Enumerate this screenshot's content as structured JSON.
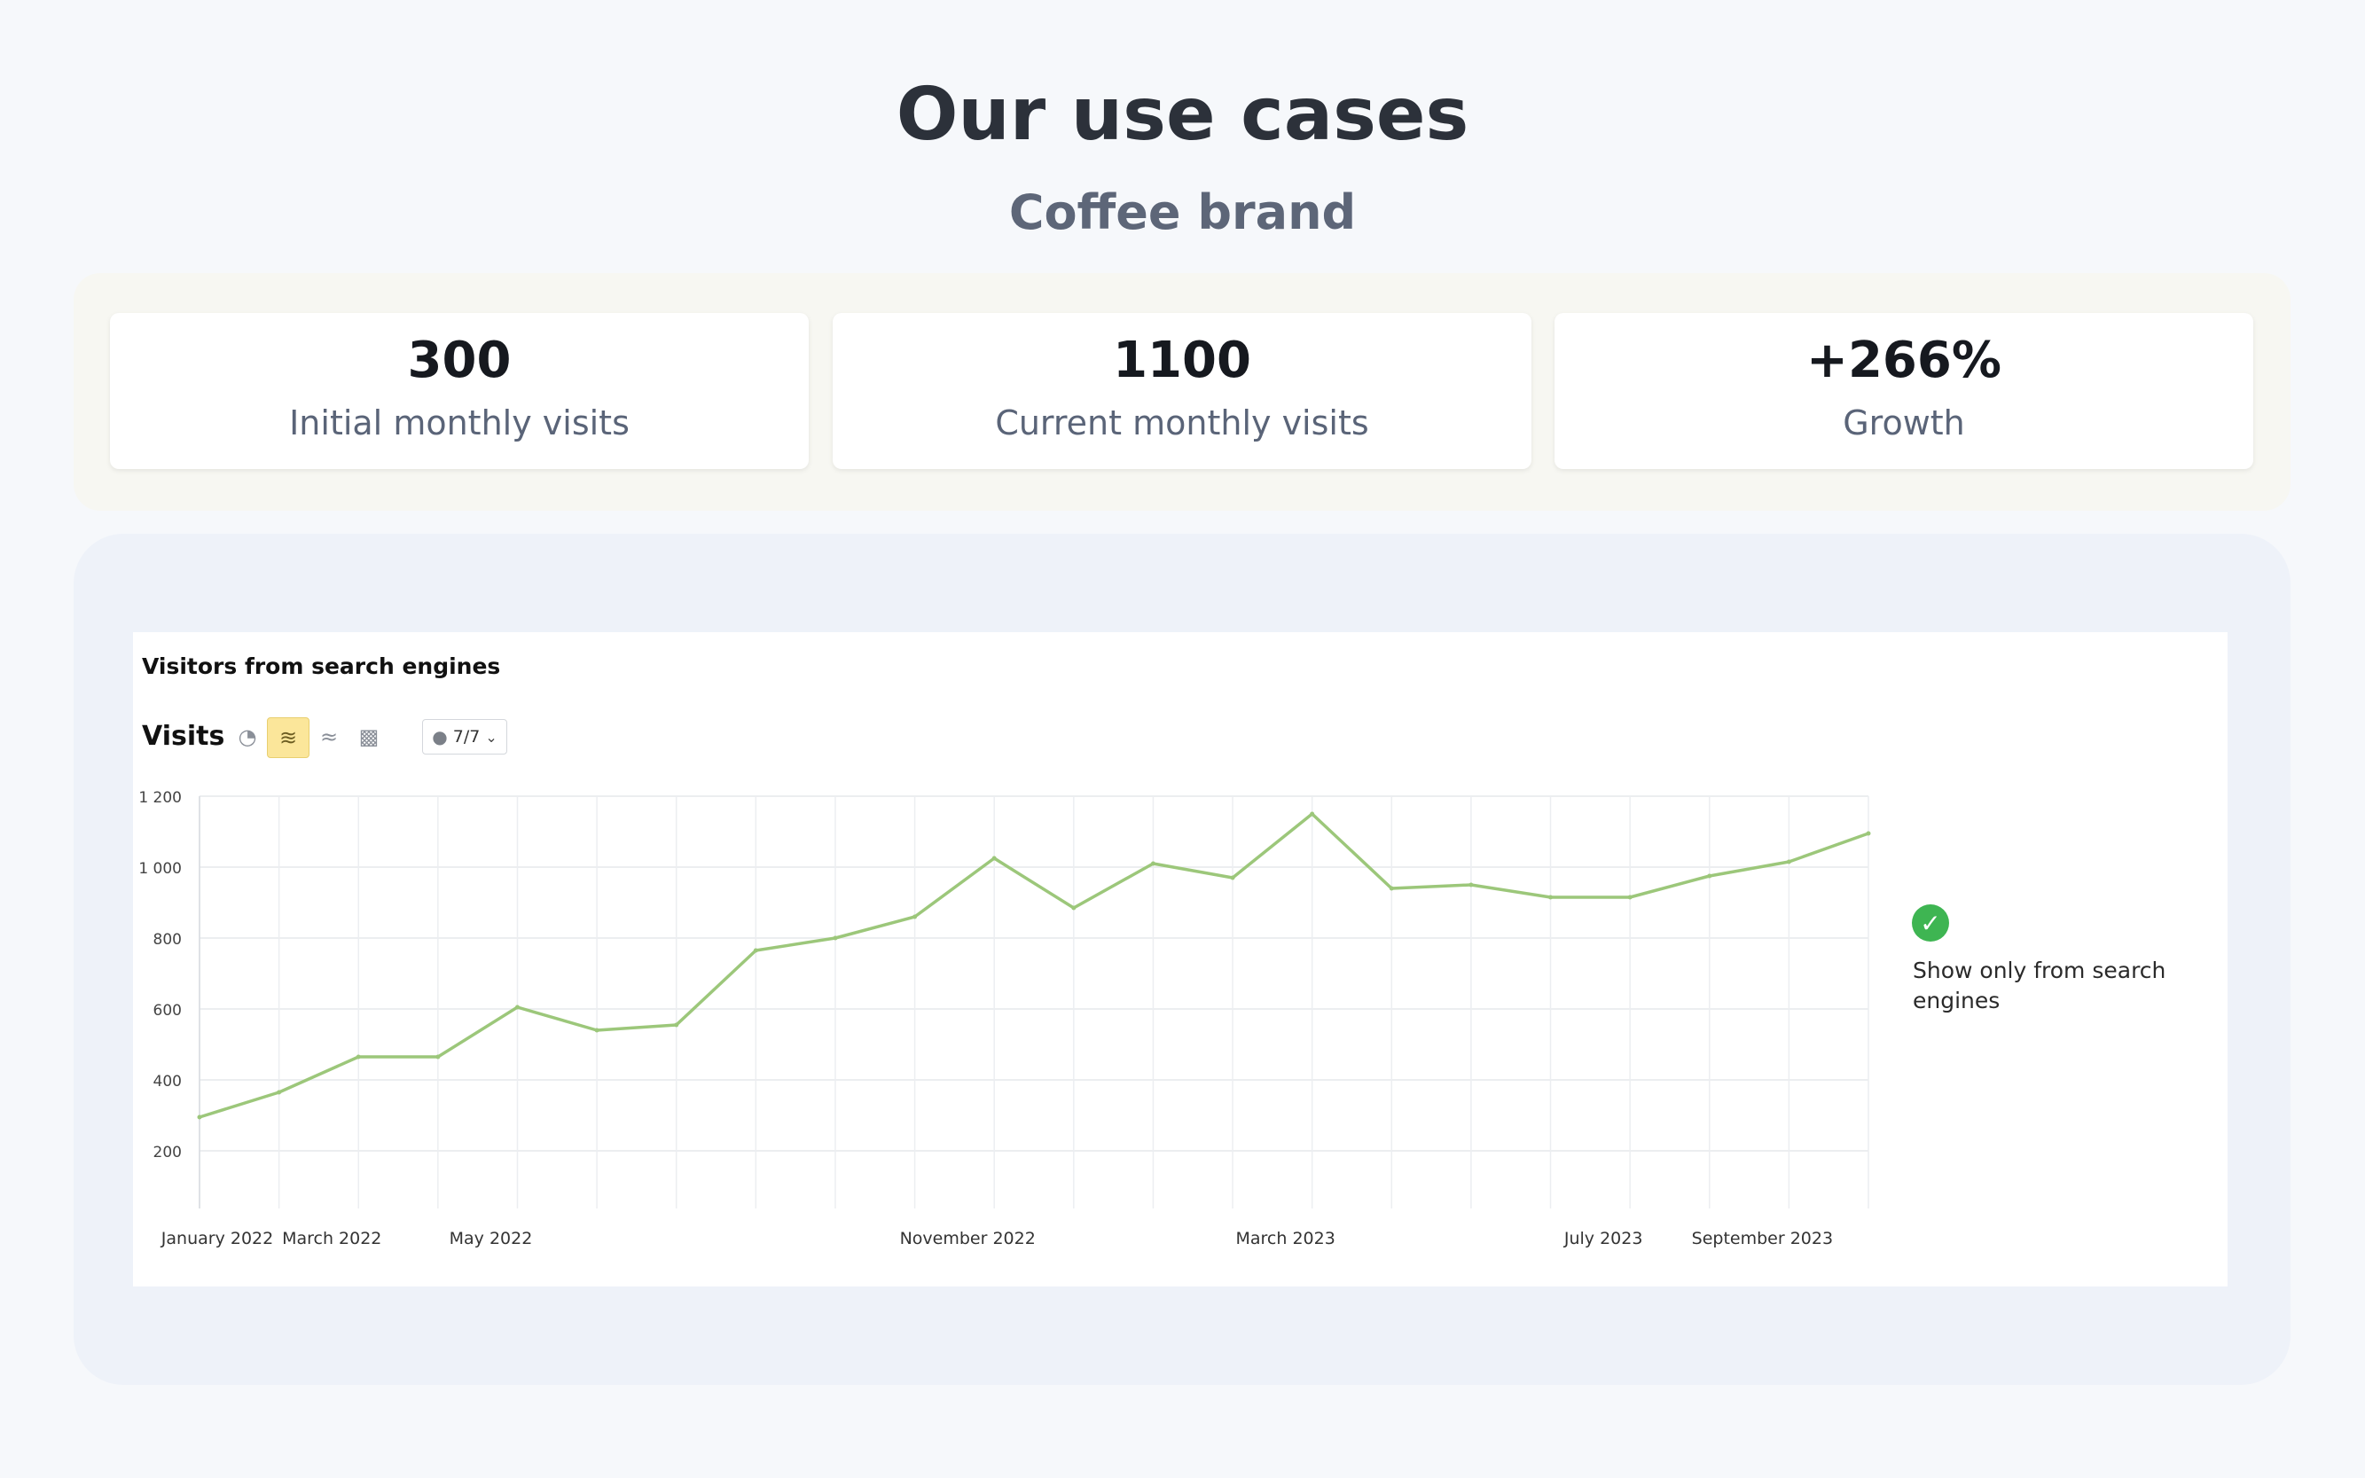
{
  "header": {
    "title": "Our use cases",
    "subtitle": "Coffee brand"
  },
  "stats": [
    {
      "value": "300",
      "label": "Initial monthly visits"
    },
    {
      "value": "1100",
      "label": "Current monthly visits"
    },
    {
      "value": "+266%",
      "label": "Growth"
    }
  ],
  "chart_widget": {
    "title": "Visitors from search engines",
    "metric_label": "Visits",
    "toolbar": {
      "icons": [
        "pie-chart-icon",
        "line-chart-icon",
        "area-chart-icon",
        "bar-chart-icon"
      ],
      "active_icon": "line-chart-icon",
      "notes_value": "7/7"
    },
    "legend_label": "Show only from search engines"
  },
  "chart_data": {
    "type": "line",
    "title": "Visitors from search engines",
    "ylabel": "Visits",
    "xlabel": "",
    "ylim": [
      100,
      1200
    ],
    "yticks": [
      200,
      400,
      600,
      800,
      1000,
      1200
    ],
    "ytick_labels": [
      "200",
      "400",
      "600",
      "800",
      "1 000",
      "1 200"
    ],
    "x": [
      "2022-01",
      "2022-02",
      "2022-03",
      "2022-04",
      "2022-05",
      "2022-06",
      "2022-07",
      "2022-08",
      "2022-09",
      "2022-10",
      "2022-11",
      "2022-12",
      "2023-01",
      "2023-02",
      "2023-03",
      "2023-04",
      "2023-05",
      "2023-06",
      "2023-07",
      "2023-08",
      "2023-09",
      "2023-10"
    ],
    "x_tick_labels": [
      {
        "x": "2022-01",
        "label": "January 2022"
      },
      {
        "x": "2022-03",
        "label": "March 2022"
      },
      {
        "x": "2022-05",
        "label": "May 2022"
      },
      {
        "x": "2022-11",
        "label": "November 2022"
      },
      {
        "x": "2023-03",
        "label": "March 2023"
      },
      {
        "x": "2023-07",
        "label": "July 2023"
      },
      {
        "x": "2023-09",
        "label": "September 2023"
      }
    ],
    "series": [
      {
        "values": [
          295,
          365,
          465,
          465,
          605,
          540,
          555,
          765,
          800,
          860,
          1025,
          885,
          1010,
          970,
          1150,
          940,
          950,
          915,
          915,
          975,
          1015,
          1095
        ],
        "color": "#9cc77a"
      }
    ],
    "grid": true,
    "legend": "right"
  }
}
